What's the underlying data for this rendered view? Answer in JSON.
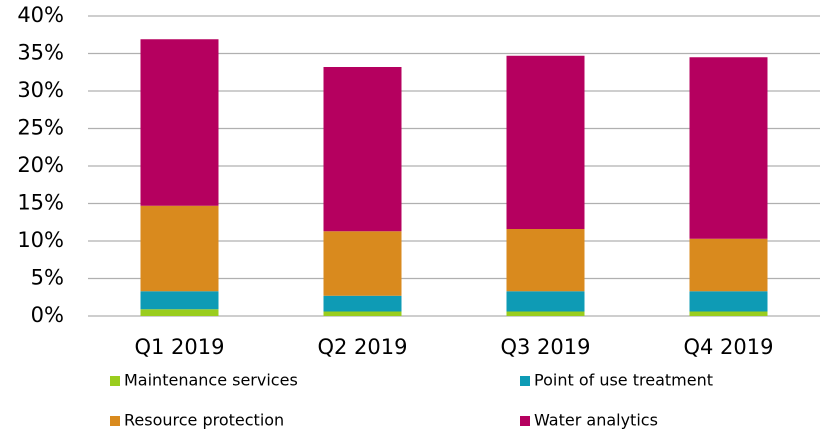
{
  "chart_data": {
    "type": "stacked_bar",
    "categories": [
      "Q1 2019",
      "Q2 2019",
      "Q3 2019",
      "Q4 2019"
    ],
    "series": [
      {
        "name": "Maintenance services",
        "color": "#9acd1e",
        "values": [
          0.9,
          0.6,
          0.6,
          0.6
        ]
      },
      {
        "name": "Point of use treatment",
        "color": "#0e9bb5",
        "values": [
          2.4,
          2.1,
          2.7,
          2.7
        ]
      },
      {
        "name": "Resource protection",
        "color": "#d98a1e",
        "values": [
          11.4,
          8.6,
          8.3,
          7.0
        ]
      },
      {
        "name": "Water analytics",
        "color": "#b5005f",
        "values": [
          22.2,
          21.9,
          23.1,
          24.2
        ]
      }
    ],
    "ylim": [
      0,
      40
    ],
    "yticks": [
      {
        "value": 0,
        "label": "0%"
      },
      {
        "value": 5,
        "label": "5%"
      },
      {
        "value": 10,
        "label": "10%"
      },
      {
        "value": 15,
        "label": "15%"
      },
      {
        "value": 20,
        "label": "20%"
      },
      {
        "value": 25,
        "label": "25%"
      },
      {
        "value": 30,
        "label": "30%"
      },
      {
        "value": 35,
        "label": "35%"
      },
      {
        "value": 40,
        "label": "40%"
      }
    ],
    "grid": true,
    "legend": "bottom"
  }
}
